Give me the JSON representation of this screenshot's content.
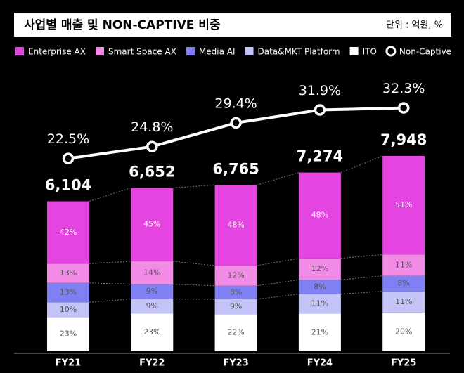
{
  "chart_data": {
    "type": "bar",
    "stacked": true,
    "title": "사업별 매출 및 NON-CAPTIVE 비중",
    "unit_note": "단위 : 억원, %",
    "categories": [
      "FY21",
      "FY22",
      "FY23",
      "FY24",
      "FY25"
    ],
    "totals": {
      "values": [
        6104,
        6652,
        6765,
        7274,
        7948
      ],
      "value_labels": [
        "6,104",
        "6,652",
        "6,765",
        "7,274",
        "7,948"
      ]
    },
    "series": [
      {
        "name": "Enterprise AX",
        "color": "#e444df",
        "values": [
          42,
          45,
          48,
          48,
          51
        ],
        "value_labels": [
          "42%",
          "45%",
          "48%",
          "48%",
          "51%"
        ]
      },
      {
        "name": "Smart Space AX",
        "color": "#f18be6",
        "values": [
          13,
          14,
          12,
          12,
          11
        ],
        "value_labels": [
          "13%",
          "14%",
          "12%",
          "12%",
          "11%"
        ]
      },
      {
        "name": "Media AI",
        "color": "#7f80f3",
        "values": [
          13,
          9,
          8,
          8,
          8
        ],
        "value_labels": [
          "13%",
          "9%",
          "8%",
          "8%",
          "8%"
        ]
      },
      {
        "name": "Data&MKT Platform",
        "color": "#c3c3f8",
        "values": [
          10,
          9,
          9,
          11,
          11
        ],
        "value_labels": [
          "10%",
          "9%",
          "9%",
          "11%",
          "11%"
        ]
      },
      {
        "name": "ITO",
        "color": "#ffffff",
        "values": [
          23,
          23,
          22,
          21,
          20
        ],
        "value_labels": [
          "23%",
          "23%",
          "22%",
          "21%",
          "20%"
        ]
      }
    ],
    "line": {
      "name": "Non-Captive",
      "type": "line",
      "color": "#ffffff",
      "values": [
        22.5,
        24.8,
        29.4,
        31.9,
        32.3
      ],
      "value_labels": [
        "22.5%",
        "24.8%",
        "29.4%",
        "31.9%",
        "32.3%"
      ]
    }
  }
}
